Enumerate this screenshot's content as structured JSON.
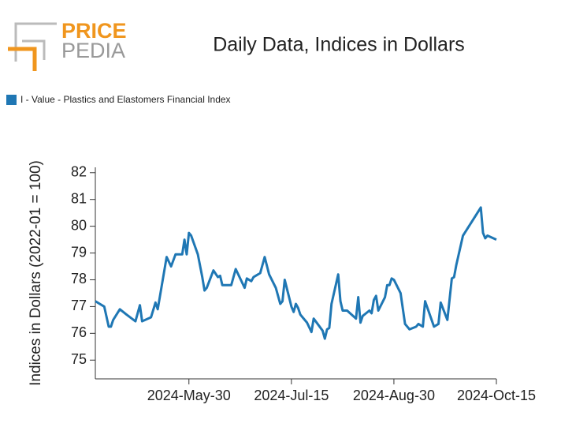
{
  "brand": {
    "top": "PRICE",
    "bottom": "PEDIA"
  },
  "chart_data": {
    "type": "line",
    "title": "Daily Data, Indices in Dollars",
    "y_label": "Indices in Dollars (2022-01 = 100)",
    "legend_position": "top-left",
    "xlim": [
      "2024-04-18",
      "2024-10-15"
    ],
    "ylim": [
      74.3,
      82.2
    ],
    "yticks": [
      75,
      76,
      77,
      78,
      79,
      80,
      81,
      82
    ],
    "xticks": [
      {
        "value": "2024-05-30",
        "label": "2024-May-30"
      },
      {
        "value": "2024-07-15",
        "label": "2024-Jul-15"
      },
      {
        "value": "2024-08-30",
        "label": "2024-Aug-30"
      },
      {
        "value": "2024-10-15",
        "label": "2024-Oct-15"
      }
    ],
    "x": [
      "2024-04-18",
      "2024-04-22",
      "2024-04-24",
      "2024-04-25",
      "2024-04-26",
      "2024-04-29",
      "2024-05-02",
      "2024-05-06",
      "2024-05-08",
      "2024-05-09",
      "2024-05-13",
      "2024-05-15",
      "2024-05-16",
      "2024-05-20",
      "2024-05-22",
      "2024-05-24",
      "2024-05-27",
      "2024-05-28",
      "2024-05-29",
      "2024-05-30",
      "2024-05-31",
      "2024-06-03",
      "2024-06-05",
      "2024-06-06",
      "2024-06-07",
      "2024-06-10",
      "2024-06-12",
      "2024-06-13",
      "2024-06-14",
      "2024-06-18",
      "2024-06-20",
      "2024-06-24",
      "2024-06-25",
      "2024-06-27",
      "2024-06-28",
      "2024-07-01",
      "2024-07-03",
      "2024-07-05",
      "2024-07-08",
      "2024-07-10",
      "2024-07-11",
      "2024-07-12",
      "2024-07-15",
      "2024-07-16",
      "2024-07-17",
      "2024-07-18",
      "2024-07-19",
      "2024-07-22",
      "2024-07-24",
      "2024-07-25",
      "2024-07-29",
      "2024-07-30",
      "2024-07-31",
      "2024-08-01",
      "2024-08-02",
      "2024-08-05",
      "2024-08-06",
      "2024-08-07",
      "2024-08-09",
      "2024-08-13",
      "2024-08-14",
      "2024-08-15",
      "2024-08-16",
      "2024-08-19",
      "2024-08-20",
      "2024-08-21",
      "2024-08-22",
      "2024-08-23",
      "2024-08-26",
      "2024-08-27",
      "2024-08-28",
      "2024-08-29",
      "2024-08-30",
      "2024-09-02",
      "2024-09-04",
      "2024-09-06",
      "2024-09-09",
      "2024-09-10",
      "2024-09-12",
      "2024-09-13",
      "2024-09-17",
      "2024-09-19",
      "2024-09-20",
      "2024-09-23",
      "2024-09-25",
      "2024-09-26",
      "2024-09-27",
      "2024-09-30",
      "2024-10-08",
      "2024-10-09",
      "2024-10-10",
      "2024-10-11",
      "2024-10-15"
    ],
    "series": [
      {
        "name": "I - Value - Plastics and Elastomers Financial Index",
        "color": "#1f77b4",
        "values": [
          77.2,
          77.0,
          76.25,
          76.25,
          76.5,
          76.9,
          76.7,
          76.45,
          77.05,
          76.45,
          76.6,
          77.15,
          76.9,
          78.85,
          78.5,
          78.95,
          78.95,
          79.5,
          78.95,
          79.75,
          79.65,
          78.95,
          78.1,
          77.6,
          77.7,
          78.35,
          78.1,
          78.15,
          77.8,
          77.8,
          78.4,
          77.7,
          78.05,
          77.95,
          78.1,
          78.25,
          78.85,
          78.2,
          77.7,
          77.1,
          77.2,
          78.0,
          77.0,
          76.8,
          77.1,
          76.95,
          76.7,
          76.4,
          76.05,
          76.55,
          76.1,
          75.8,
          76.15,
          76.2,
          77.1,
          78.2,
          77.2,
          76.85,
          76.85,
          76.55,
          77.35,
          76.4,
          76.65,
          76.85,
          76.75,
          77.25,
          77.4,
          76.85,
          77.35,
          77.8,
          77.8,
          78.05,
          78.0,
          77.5,
          76.35,
          76.15,
          76.25,
          76.35,
          76.25,
          77.2,
          76.25,
          76.35,
          77.15,
          76.5,
          78.05,
          78.1,
          78.55,
          79.65,
          80.7,
          79.75,
          79.55,
          79.65,
          79.5
        ]
      }
    ]
  }
}
